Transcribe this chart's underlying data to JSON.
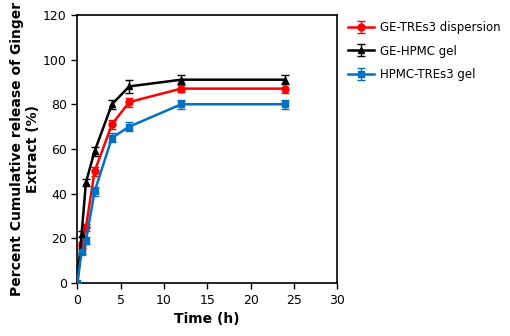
{
  "time_points": [
    0,
    0.5,
    1,
    2,
    4,
    6,
    12,
    24
  ],
  "GE_TREs3": {
    "y": [
      0,
      17,
      25,
      50,
      71,
      81,
      87,
      87
    ],
    "yerr": [
      0,
      1.2,
      1.5,
      2,
      2,
      2,
      1.5,
      2
    ],
    "color": "#ff0000",
    "marker": "o",
    "label": "GE-TREs3 dispersion"
  },
  "GE_HPMC": {
    "y": [
      0,
      22,
      45,
      59,
      80,
      88,
      91,
      91
    ],
    "yerr": [
      0,
      1.2,
      1.5,
      2,
      2,
      3,
      2,
      2
    ],
    "color": "#000000",
    "marker": "^",
    "label": "GE-HPMC gel"
  },
  "HPMC_TREs3": {
    "y": [
      0,
      14,
      19,
      41,
      65,
      70,
      80,
      80
    ],
    "yerr": [
      0,
      1.2,
      1.5,
      2,
      2,
      2,
      2,
      2
    ],
    "color": "#0070c0",
    "marker": "s",
    "label": "HPMC-TREs3 gel"
  },
  "xlabel": "Time (h)",
  "ylabel": "Percent Cumulative release of Ginger\nExtract (%)",
  "xlim": [
    0,
    30
  ],
  "ylim": [
    0,
    120
  ],
  "xticks": [
    0,
    5,
    10,
    15,
    20,
    25,
    30
  ],
  "yticks": [
    0,
    20,
    40,
    60,
    80,
    100,
    120
  ],
  "linewidth": 1.8,
  "markersize": 5,
  "capsize": 3,
  "legend_fontsize": 8.5,
  "axis_label_fontsize": 10,
  "tick_fontsize": 9,
  "background_color": "#ffffff"
}
